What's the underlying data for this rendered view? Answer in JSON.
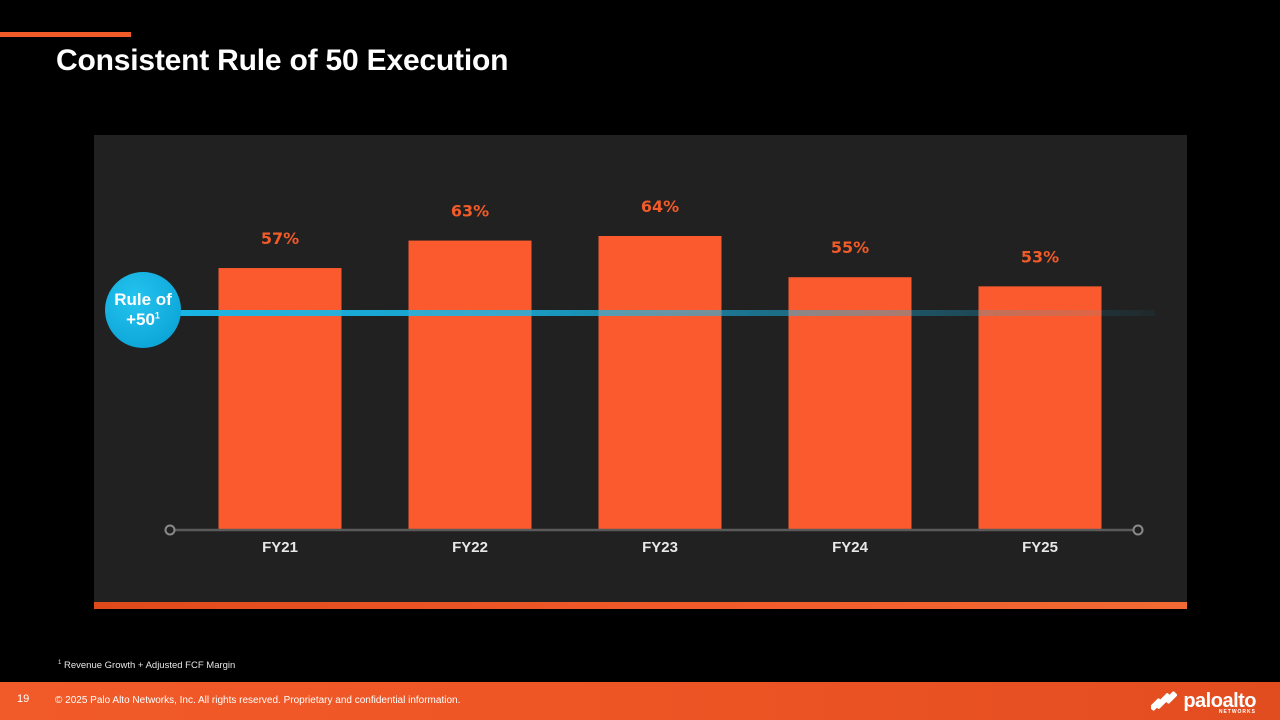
{
  "page": {
    "title": "Consistent Rule of 50 Execution",
    "page_number": "19",
    "copyright": "© 2025 Palo Alto Networks, Inc. All rights reserved. Proprietary and confidential information.",
    "footnote_marker": "1",
    "footnote_text": "Revenue Growth + Adjusted  FCF Margin",
    "logo_text": "paloalto",
    "logo_sub": "NETWORKS"
  },
  "badge": {
    "line1": "Rule of",
    "line2": "+50",
    "sup": "1"
  },
  "colors": {
    "accent": "#f15a29",
    "bar": "#fa5a2d",
    "label": "#f15a29",
    "reference_line": "#18b6e6",
    "axis": "#5a5a5a"
  },
  "chart_data": {
    "type": "bar",
    "title": "Consistent Rule of 50 Execution",
    "categories": [
      "FY21",
      "FY22",
      "FY23",
      "FY24",
      "FY25"
    ],
    "values": [
      57,
      63,
      64,
      55,
      53
    ],
    "data_labels": [
      "57%",
      "63%",
      "64%",
      "55%",
      "53%"
    ],
    "unit": "%",
    "reference_line": {
      "value": 50,
      "label": "Rule of +50"
    },
    "ylim": [
      0,
      70
    ],
    "xlabel": "",
    "ylabel": "",
    "grid": false
  }
}
